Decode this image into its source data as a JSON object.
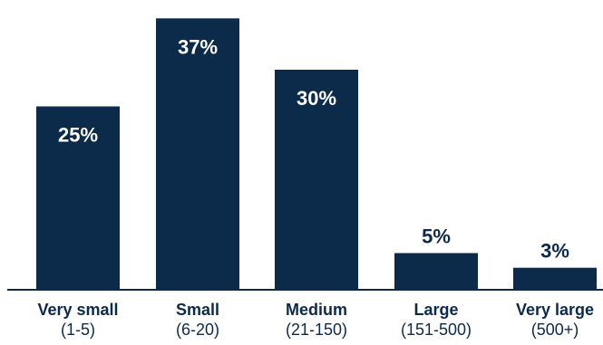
{
  "colors": {
    "bar": "#0c2a4a",
    "label_on_bar": "#ffffff",
    "label_above_bar": "#0c2a4a",
    "axis": "#0c2a4a",
    "text": "#0c2a4a",
    "background": "#ffffff"
  },
  "chart_data": {
    "type": "bar",
    "title": "",
    "xlabel": "",
    "ylabel": "",
    "ylim": [
      0,
      40
    ],
    "grid": false,
    "categories": [
      {
        "name": "Very small",
        "range": "(1-5)"
      },
      {
        "name": "Small",
        "range": "(6-20)"
      },
      {
        "name": "Medium",
        "range": "(21-150)"
      },
      {
        "name": "Large",
        "range": "(151-500)"
      },
      {
        "name": "Very large",
        "range": "(500+)"
      }
    ],
    "values": [
      25,
      37,
      30,
      5,
      3
    ],
    "data_labels": [
      "25%",
      "37%",
      "30%",
      "5%",
      "3%"
    ]
  }
}
